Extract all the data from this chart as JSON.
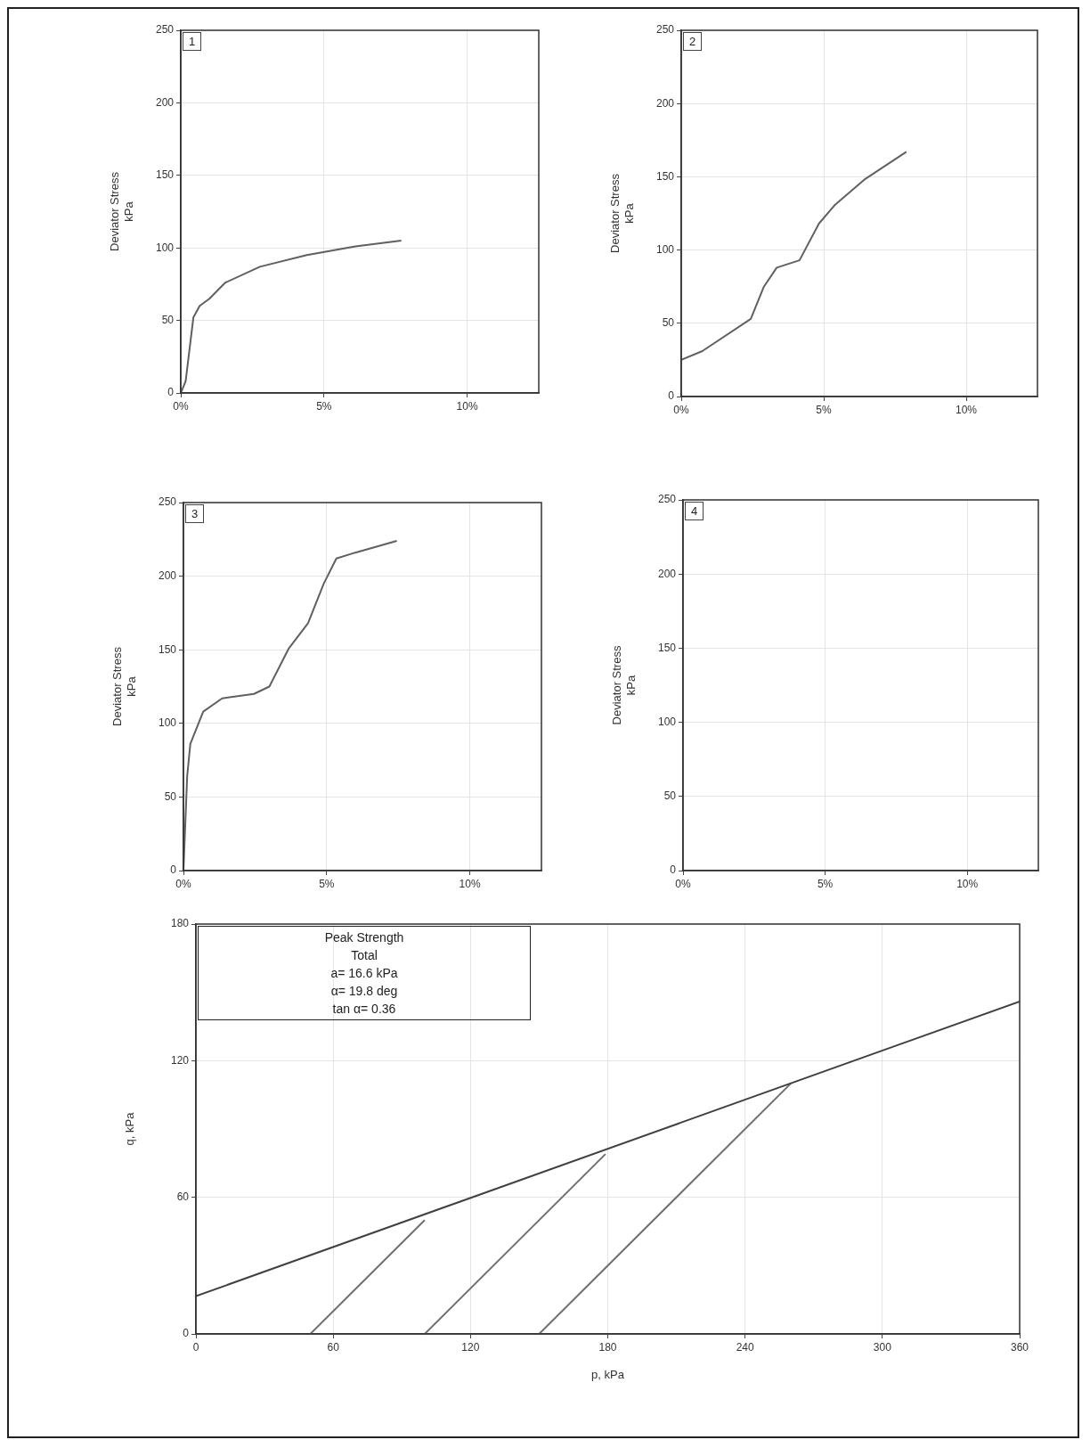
{
  "chart_data": [
    {
      "type": "line",
      "ylabel": "Deviator Stress kPa",
      "annotations": [
        "1"
      ],
      "xlim": [
        0,
        12.5
      ],
      "xticks": [
        {
          "value": 0,
          "label": "0%"
        },
        {
          "value": 5,
          "label": "5%"
        },
        {
          "value": 10,
          "label": "10%"
        }
      ],
      "ylim": [
        0,
        250
      ],
      "yticks": [
        0,
        50,
        100,
        150,
        200,
        250
      ],
      "grid": true,
      "legend": false,
      "marker": "none",
      "series": [
        {
          "color": "#606060",
          "x": [
            0,
            0.17,
            0.44,
            0.66,
            1,
            1.55,
            2.76,
            4.4,
            6.1,
            7.7
          ],
          "values": [
            0,
            8,
            52,
            60,
            65,
            76,
            87,
            95,
            101,
            105
          ]
        }
      ]
    },
    {
      "type": "line",
      "ylabel": "Deviator Stress kPa",
      "annotations": [
        "2"
      ],
      "xlim": [
        0,
        12.5
      ],
      "xticks": [
        {
          "value": 0,
          "label": "0%"
        },
        {
          "value": 5,
          "label": "5%"
        },
        {
          "value": 10,
          "label": "10%"
        }
      ],
      "ylim": [
        0,
        250
      ],
      "yticks": [
        0,
        50,
        100,
        150,
        200,
        250
      ],
      "grid": true,
      "legend": false,
      "marker": "none",
      "series": [
        {
          "color": "#606060",
          "x": [
            0,
            0.74,
            2.44,
            2.9,
            3.35,
            4.15,
            4.83,
            5.4,
            6.42,
            7.9
          ],
          "values": [
            25,
            31,
            53,
            75,
            88,
            93,
            118,
            131,
            148,
            167
          ]
        }
      ]
    },
    {
      "type": "line",
      "ylabel": "Deviator Stress kPa",
      "annotations": [
        "3"
      ],
      "xlim": [
        0,
        12.5
      ],
      "xticks": [
        {
          "value": 0,
          "label": "0%"
        },
        {
          "value": 5,
          "label": "5%"
        },
        {
          "value": 10,
          "label": "10%"
        }
      ],
      "ylim": [
        0,
        250
      ],
      "yticks": [
        0,
        50,
        100,
        150,
        200,
        250
      ],
      "grid": true,
      "legend": false,
      "marker": "none",
      "series": [
        {
          "color": "#606060",
          "x": [
            0,
            0.13,
            0.24,
            0.69,
            1.35,
            2.46,
            3.0,
            3.68,
            4.35,
            4.9,
            5.34,
            6.0,
            7.45
          ],
          "values": [
            0,
            64,
            86,
            108,
            117,
            120,
            125,
            151,
            168,
            195,
            212,
            216,
            224
          ]
        }
      ]
    },
    {
      "type": "line",
      "ylabel": "Deviator Stress kPa",
      "annotations": [
        "4"
      ],
      "xlim": [
        0,
        12.5
      ],
      "xticks": [
        {
          "value": 0,
          "label": "0%"
        },
        {
          "value": 5,
          "label": "5%"
        },
        {
          "value": 10,
          "label": "10%"
        }
      ],
      "ylim": [
        0,
        250
      ],
      "yticks": [
        0,
        50,
        100,
        150,
        200,
        250
      ],
      "grid": true,
      "legend": false
    },
    {
      "type": "line",
      "xlabel": "p, kPa",
      "ylabel": "q, kPa",
      "annotations": [
        "Peak Strength",
        "Total",
        "a= 16.6 kPa",
        "α= 19.8 deg",
        "tan α= 0.36"
      ],
      "xlim": [
        0,
        360
      ],
      "xticks": [
        0,
        60,
        120,
        180,
        240,
        300,
        360
      ],
      "ylim": [
        0,
        180
      ],
      "yticks": [
        0,
        60,
        120,
        180
      ],
      "grid": true,
      "legend": false,
      "marker": "none",
      "series": [
        {
          "color": "#404040",
          "x": [
            0,
            360
          ],
          "values": [
            16.6,
            146
          ]
        },
        {
          "color": "#707070",
          "x": [
            50,
            100
          ],
          "values": [
            0,
            50
          ]
        },
        {
          "color": "#707070",
          "x": [
            100,
            179
          ],
          "values": [
            0,
            79
          ]
        },
        {
          "color": "#707070",
          "x": [
            150,
            260
          ],
          "values": [
            0,
            110
          ]
        }
      ]
    }
  ]
}
